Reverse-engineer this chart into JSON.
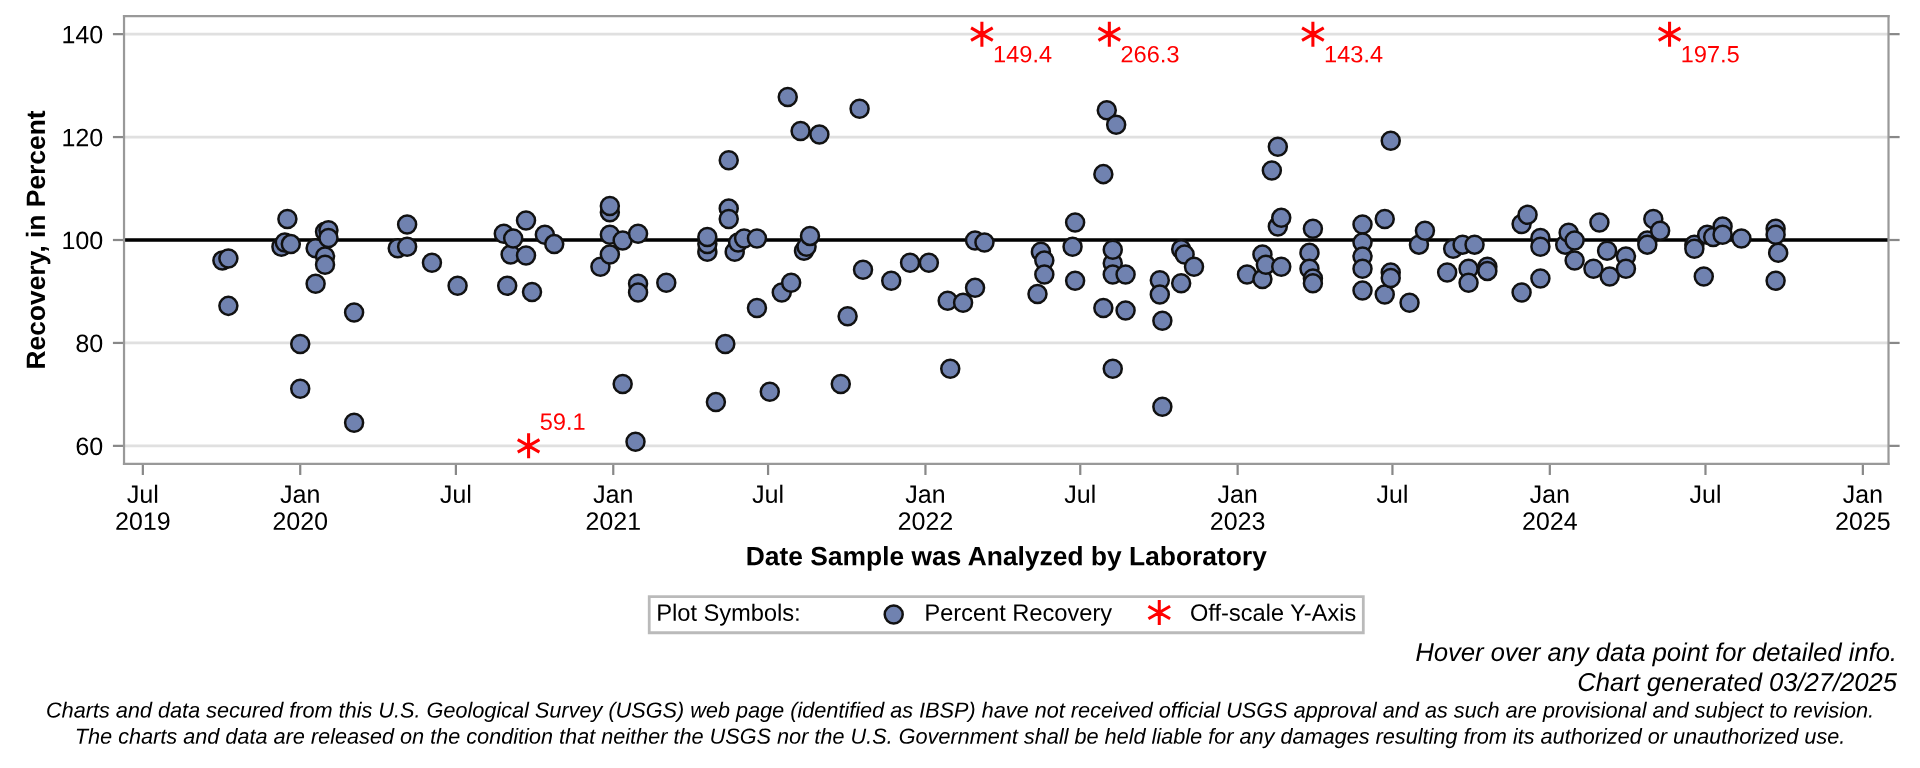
{
  "chart_data": {
    "type": "scatter",
    "xlabel": "Date Sample was Analyzed by Laboratory",
    "ylabel": "Recovery, in Percent",
    "legend_title": "Plot Symbols:",
    "legend": "bottom",
    "grid": "y",
    "xlim": [
      "2019-06-09",
      "2025-01-31"
    ],
    "ylim": [
      56.5,
      143.5
    ],
    "xticks": [
      {
        "value": "2019-07-01",
        "label": "Jul\n2019"
      },
      {
        "value": "2020-01-01",
        "label": "Jan\n2020"
      },
      {
        "value": "2020-07-01",
        "label": "Jul"
      },
      {
        "value": "2021-01-01",
        "label": "Jan\n2021"
      },
      {
        "value": "2021-07-01",
        "label": "Jul"
      },
      {
        "value": "2022-01-01",
        "label": "Jan\n2022"
      },
      {
        "value": "2022-07-01",
        "label": "Jul"
      },
      {
        "value": "2023-01-01",
        "label": "Jan\n2023"
      },
      {
        "value": "2023-07-01",
        "label": "Jul"
      },
      {
        "value": "2024-01-01",
        "label": "Jan\n2024"
      },
      {
        "value": "2024-07-01",
        "label": "Jul"
      },
      {
        "value": "2025-01-01",
        "label": "Jan\n2025"
      }
    ],
    "yticks": [
      60,
      80,
      100,
      120,
      140
    ],
    "ref_lines": [
      {
        "axis": "y",
        "value": 100,
        "color": "#000000"
      }
    ],
    "series": [
      {
        "name": "Percent Recovery",
        "color": "#7082b0",
        "marker": "circle",
        "x": [
          "2019-10-02",
          "2019-10-09",
          "2019-10-09",
          "2019-12-10",
          "2019-12-14",
          "2019-12-17",
          "2019-12-21",
          "2020-01-01",
          "2020-01-01",
          "2020-01-19",
          "2020-01-19",
          "2020-01-30",
          "2020-01-30",
          "2020-01-30",
          "2020-02-03",
          "2020-02-03",
          "2020-03-04",
          "2020-03-04",
          "2020-04-24",
          "2020-05-05",
          "2020-05-05",
          "2020-06-03",
          "2020-07-03",
          "2020-08-26",
          "2020-08-30",
          "2020-09-03",
          "2020-09-06",
          "2020-09-21",
          "2020-09-21",
          "2020-09-28",
          "2020-10-13",
          "2020-10-24",
          "2020-12-17",
          "2020-12-28",
          "2020-12-28",
          "2020-12-28",
          "2020-12-28",
          "2021-01-12",
          "2021-01-12",
          "2021-01-27",
          "2021-01-30",
          "2021-01-30",
          "2021-01-30",
          "2021-03-04",
          "2021-04-21",
          "2021-04-21",
          "2021-04-21",
          "2021-05-01",
          "2021-05-12",
          "2021-05-16",
          "2021-05-16",
          "2021-05-16",
          "2021-05-23",
          "2021-05-27",
          "2021-06-03",
          "2021-06-18",
          "2021-06-18",
          "2021-07-03",
          "2021-07-17",
          "2021-07-24",
          "2021-07-28",
          "2021-08-08",
          "2021-08-12",
          "2021-08-15",
          "2021-08-19",
          "2021-08-30",
          "2021-09-24",
          "2021-10-02",
          "2021-10-16",
          "2021-10-20",
          "2021-11-22",
          "2021-12-14",
          "2022-01-05",
          "2022-01-27",
          "2022-01-30",
          "2022-02-14",
          "2022-02-28",
          "2022-02-28",
          "2022-03-11",
          "2022-05-12",
          "2022-05-16",
          "2022-05-20",
          "2022-05-20",
          "2022-06-22",
          "2022-06-25",
          "2022-06-25",
          "2022-07-28",
          "2022-07-28",
          "2022-08-01",
          "2022-08-12",
          "2022-08-08",
          "2022-08-08",
          "2022-08-08",
          "2022-08-08",
          "2022-08-23",
          "2022-08-23",
          "2022-10-02",
          "2022-10-02",
          "2022-10-05",
          "2022-10-05",
          "2022-10-27",
          "2022-10-27",
          "2022-10-31",
          "2022-11-11",
          "2023-01-12",
          "2023-01-30",
          "2023-01-30",
          "2023-02-03",
          "2023-02-10",
          "2023-02-17",
          "2023-02-17",
          "2023-02-21",
          "2023-02-21",
          "2023-03-26",
          "2023-03-26",
          "2023-03-30",
          "2023-03-30",
          "2023-03-30",
          "2023-05-27",
          "2023-05-27",
          "2023-05-27",
          "2023-05-27",
          "2023-05-27",
          "2023-06-22",
          "2023-06-22",
          "2023-06-29",
          "2023-06-29",
          "2023-06-29",
          "2023-07-21",
          "2023-08-01",
          "2023-08-08",
          "2023-09-03",
          "2023-09-10",
          "2023-09-21",
          "2023-09-28",
          "2023-09-28",
          "2023-10-05",
          "2023-10-20",
          "2023-10-20",
          "2023-11-29",
          "2023-12-06",
          "2023-11-29",
          "2023-12-21",
          "2023-12-21",
          "2023-12-21",
          "2024-01-19",
          "2024-01-23",
          "2024-01-30",
          "2024-01-30",
          "2024-02-21",
          "2024-02-28",
          "2024-03-08",
          "2024-03-11",
          "2024-03-30",
          "2024-03-30",
          "2024-04-24",
          "2024-04-24",
          "2024-05-01",
          "2024-05-09",
          "2024-06-18",
          "2024-06-18",
          "2024-06-29",
          "2024-07-03",
          "2024-07-10",
          "2024-07-21",
          "2024-07-21",
          "2024-08-12",
          "2024-09-21",
          "2024-09-21",
          "2024-09-21",
          "2024-09-24"
        ],
        "values": [
          96.0,
          96.4,
          87.2,
          98.7,
          99.5,
          104.1,
          99.2,
          79.8,
          71.1,
          98.4,
          91.5,
          96.8,
          95.2,
          101.6,
          101.9,
          100.4,
          85.9,
          64.5,
          98.4,
          103.0,
          98.7,
          95.6,
          91.1,
          101.2,
          91.1,
          97.2,
          100.3,
          103.8,
          97.0,
          89.9,
          101.0,
          99.2,
          94.8,
          97.2,
          101.0,
          105.4,
          106.6,
          99.9,
          72.0,
          60.8,
          101.2,
          91.5,
          89.8,
          91.7,
          97.7,
          99.2,
          100.6,
          68.5,
          79.8,
          115.5,
          106.1,
          104.1,
          97.7,
          99.5,
          100.3,
          100.3,
          86.8,
          70.5,
          89.8,
          127.8,
          91.7,
          121.2,
          97.9,
          98.7,
          100.8,
          120.5,
          72.0,
          85.2,
          125.5,
          94.2,
          92.1,
          95.6,
          95.6,
          88.2,
          75.0,
          87.8,
          90.7,
          99.9,
          99.5,
          89.5,
          97.7,
          96.0,
          93.3,
          98.7,
          92.1,
          103.4,
          112.8,
          86.8,
          125.2,
          122.4,
          75.0,
          95.5,
          98.1,
          93.3,
          93.3,
          86.3,
          92.2,
          89.4,
          84.3,
          67.6,
          98.2,
          91.6,
          97.2,
          94.8,
          93.3,
          97.2,
          92.4,
          95.2,
          113.5,
          118.1,
          102.6,
          104.3,
          94.8,
          97.5,
          94.4,
          102.2,
          92.5,
          91.6,
          103.0,
          99.5,
          96.8,
          94.4,
          90.2,
          104.1,
          89.4,
          119.3,
          93.7,
          92.6,
          87.8,
          99.1,
          101.8,
          93.7,
          98.3,
          99.1,
          94.4,
          91.7,
          99.1,
          94.8,
          94.0,
          103.1,
          104.9,
          89.8,
          100.4,
          98.7,
          92.5,
          99.1,
          101.4,
          99.9,
          96.0,
          94.4,
          103.4,
          97.9,
          92.9,
          96.8,
          94.4,
          99.9,
          99.1,
          104.1,
          101.8,
          99.1,
          98.3,
          92.9,
          101.0,
          100.6,
          102.6,
          101.0,
          100.3,
          102.2,
          101.0,
          92.1,
          97.5
        ]
      },
      {
        "name": "Off-scale Y-Axis",
        "color": "#ff0000",
        "marker": "cross",
        "x": [
          "2020-09-24",
          "2022-03-08",
          "2022-08-04",
          "2023-03-30",
          "2024-05-20"
        ],
        "values": [
          60,
          140,
          140,
          140,
          140
        ]
      }
    ],
    "annotations": [
      {
        "text": "59.1",
        "x": "2020-09-24",
        "y": 60
      },
      {
        "text": "149.4",
        "x": "2022-03-08",
        "y": 140
      },
      {
        "text": "266.3",
        "x": "2022-08-04",
        "y": 140
      },
      {
        "text": "143.4",
        "x": "2023-03-30",
        "y": 140
      },
      {
        "text": "197.5",
        "x": "2024-05-20",
        "y": 140
      },
      "Hover over any data point for detailed info.",
      "Chart generated 03/27/2025",
      "Charts and data secured from this U.S. Geological Survey (USGS) web page (identified as IBSP) have not received official USGS approval and as such are provisional and subject to revision.",
      "The charts and data are released on the condition that neither the USGS nor the U.S. Government shall be held liable for any damages resulting from its authorized or unauthorized use."
    ]
  }
}
